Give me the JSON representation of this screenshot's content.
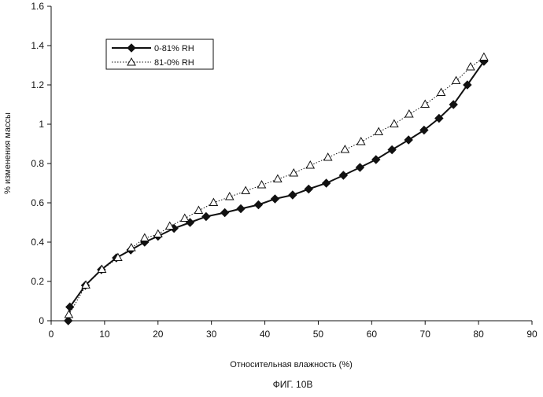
{
  "figure": {
    "caption": "ФИГ. 10В"
  },
  "chart_data": {
    "type": "line",
    "xlabel": "Относительная влажность  (%)",
    "ylabel": "% изменения  массы",
    "xlim": [
      0,
      90
    ],
    "ylim": [
      0,
      1.6
    ],
    "xticks": [
      "0",
      "10",
      "20",
      "30",
      "40",
      "50",
      "60",
      "70",
      "80",
      "90"
    ],
    "yticks": [
      "0",
      "0.2",
      "0.4",
      "0.6",
      "0.8",
      "1",
      "1.2",
      "1.4",
      "1.6"
    ],
    "grid": false,
    "legend": "top-left",
    "series": [
      {
        "name": "0-81% RH",
        "marker": "filled-diamond",
        "line": "solid",
        "x": [
          3.2,
          3.5,
          6.4,
          9.4,
          12.2,
          14.9,
          17.5,
          20.0,
          23.0,
          26.0,
          29.0,
          32.5,
          35.5,
          38.8,
          41.9,
          45.2,
          48.2,
          51.5,
          54.7,
          57.8,
          60.8,
          63.8,
          66.9,
          69.8,
          72.6,
          75.3,
          77.9,
          81.0
        ],
        "y": [
          0.0,
          0.07,
          0.18,
          0.26,
          0.32,
          0.36,
          0.4,
          0.43,
          0.47,
          0.5,
          0.53,
          0.55,
          0.57,
          0.59,
          0.62,
          0.64,
          0.67,
          0.7,
          0.74,
          0.78,
          0.82,
          0.87,
          0.92,
          0.97,
          1.03,
          1.1,
          1.2,
          1.32
        ]
      },
      {
        "name": "81-0% RH",
        "marker": "open-triangle",
        "line": "dotted",
        "x": [
          81.0,
          78.5,
          75.8,
          73.0,
          70.0,
          67.0,
          64.2,
          61.3,
          58.0,
          55.0,
          51.8,
          48.5,
          45.4,
          42.4,
          39.4,
          36.4,
          33.4,
          30.4,
          27.6,
          25.0,
          22.2,
          20.0,
          17.5,
          15.0,
          12.5,
          9.5,
          6.5,
          3.3
        ],
        "y": [
          1.34,
          1.29,
          1.22,
          1.16,
          1.1,
          1.05,
          1.0,
          0.96,
          0.91,
          0.87,
          0.83,
          0.79,
          0.75,
          0.72,
          0.69,
          0.66,
          0.63,
          0.6,
          0.56,
          0.52,
          0.48,
          0.44,
          0.42,
          0.37,
          0.32,
          0.26,
          0.18,
          0.03
        ]
      }
    ]
  }
}
